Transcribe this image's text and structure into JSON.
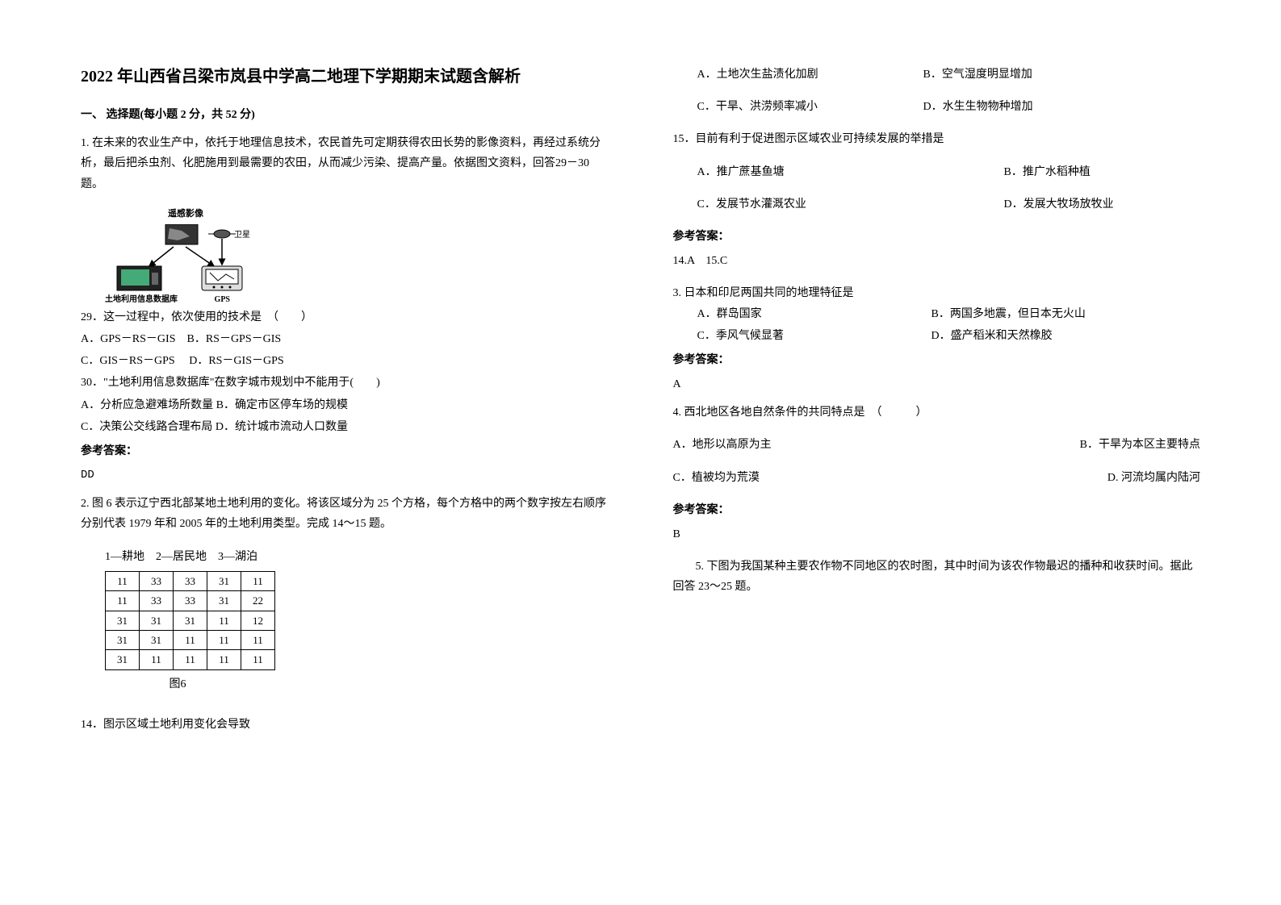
{
  "title": "2022 年山西省吕梁市岚县中学高二地理下学期期末试题含解析",
  "section1": "一、 选择题(每小题 2 分，共 52 分)",
  "q1": {
    "intro": "1. 在未来的农业生产中，依托于地理信息技术，农民首先可定期获得农田长势的影像资料，再经过系统分析，最后把杀虫剂、化肥施用到最需要的农田，从而减少污染、提高产量。依据图文资料，回答29－30 题。",
    "diagram": {
      "top_label": "遥感影像",
      "right_label": "卫星",
      "bottom_left": "土地利用信息数据库",
      "bottom_right": "GPS"
    },
    "q29": "29．这一过程中，依次使用的技术是　（　　）",
    "q29_a": "A．GPS－RS－GIS",
    "q29_b": "B．RS－GPS－GIS",
    "q29_c": "C．GIS－RS－GPS",
    "q29_d": "D．RS－GIS－GPS",
    "q30": "30．\"土地利用信息数据库\"在数字城市规划中不能用于(　　)",
    "q30_a": "A．分析应急避难场所数量",
    "q30_b": "B．确定市区停车场的规模",
    "q30_c": "C．决策公交线路合理布局",
    "q30_d": "D．统计城市流动人口数量",
    "answer_label": "参考答案：",
    "answer": "DD"
  },
  "q2": {
    "intro": "2. 图 6 表示辽宁西北部某地土地利用的变化。将该区域分为 25 个方格，每个方格中的两个数字按左右顺序分别代表 1979 年和 2005 年的土地利用类型。完成 14～15 题。",
    "legend": "1—耕地　2—居民地　3—湖泊",
    "table": {
      "rows": [
        [
          "11",
          "33",
          "33",
          "31",
          "11"
        ],
        [
          "11",
          "33",
          "33",
          "31",
          "22"
        ],
        [
          "31",
          "31",
          "31",
          "11",
          "12"
        ],
        [
          "31",
          "31",
          "11",
          "11",
          "11"
        ],
        [
          "31",
          "11",
          "11",
          "11",
          "11"
        ]
      ]
    },
    "caption": "图6",
    "q14": "14．图示区域土地利用变化会导致"
  },
  "right": {
    "q14_a": "A．土地次生盐渍化加剧",
    "q14_b": "B．空气湿度明显增加",
    "q14_c": "C．干旱、洪涝频率减小",
    "q14_d": "D．水生生物物种增加",
    "q15": "15．目前有利于促进图示区域农业可持续发展的举措是",
    "q15_a": "A．推广蔗基鱼塘",
    "q15_b": "B．推广水稻种植",
    "q15_c": "C．发展节水灌溉农业",
    "q15_d": "D．发展大牧场放牧业",
    "answer_label": "参考答案：",
    "answer": "14.A　15.C"
  },
  "q3": {
    "intro": "3. 日本和印尼两国共同的地理特征是",
    "a": "A．群岛国家",
    "b": "B．两国多地震，但日本无火山",
    "c": "C．季风气候显著",
    "d": "D．盛产稻米和天然橡胶",
    "answer_label": "参考答案：",
    "answer": "A"
  },
  "q4": {
    "intro": "4. 西北地区各地自然条件的共同特点是　（　　　）",
    "a": "A．地形以高原为主",
    "b": "B．干旱为本区主要特点",
    "c": "C．植被均为荒漠",
    "d": "D. 河流均属内陆河",
    "answer_label": "参考答案：",
    "answer": "B"
  },
  "q5": {
    "intro": "5. 下图为我国某种主要农作物不同地区的农时图，其中时间为该农作物最迟的播种和收获时间。据此回答 23～25 题。"
  }
}
